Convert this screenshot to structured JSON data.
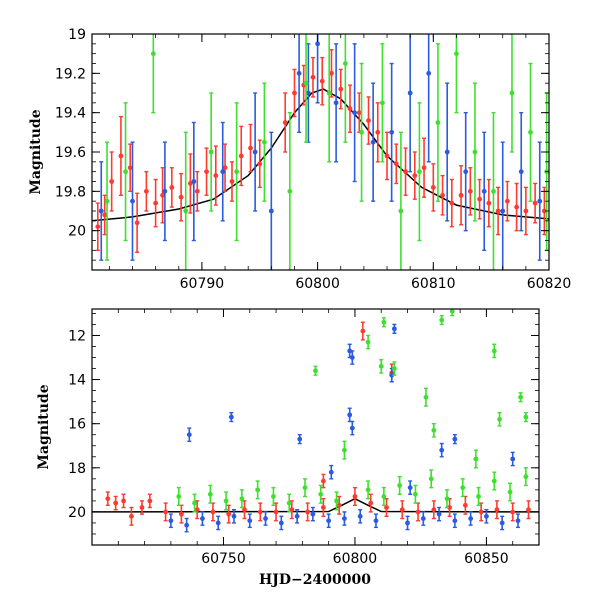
{
  "chart_data": [
    {
      "type": "scatter",
      "panel": "top",
      "title": "",
      "xlabel": "",
      "ylabel": "Magnitude",
      "xlim": [
        60780.5,
        60820
      ],
      "ylim": [
        20.2,
        19.0
      ],
      "y_inverted": true,
      "xticks": [
        60790,
        60800,
        60810,
        60820
      ],
      "yticks": [
        19,
        19.2,
        19.4,
        19.6,
        19.8,
        20
      ],
      "ytick_labels": [
        "19",
        "19.2",
        "19.4",
        "19.6",
        "19.8",
        "20"
      ],
      "grid": false,
      "legend": "none",
      "series": [
        {
          "color": "#ff3b2f",
          "marker": "circle",
          "x": [
            60781.0,
            60781.6,
            60782.2,
            60783.0,
            60783.8,
            60784.4,
            60785.2,
            60786.0,
            60786.6,
            60787.4,
            60788.2,
            60789.0,
            60789.6,
            60790.4,
            60791.2,
            60792.0,
            60792.6,
            60793.4,
            60794.2,
            60795.0,
            60797.2,
            60798.0,
            60798.8,
            60799.6,
            60800.4,
            60801.2,
            60802.0,
            60802.8,
            60803.6,
            60804.4,
            60805.2,
            60806.0,
            60806.8,
            60807.6,
            60808.4,
            60809.2,
            60810.0,
            60810.8,
            60811.6,
            60812.4,
            60813.2,
            60814.0,
            60814.8,
            60815.6,
            60816.4,
            60817.2,
            60818.0,
            60818.8,
            60819.6
          ],
          "y": [
            19.98,
            19.92,
            19.75,
            19.62,
            19.68,
            19.96,
            19.8,
            19.86,
            19.82,
            19.78,
            19.83,
            19.76,
            19.8,
            19.7,
            19.72,
            19.68,
            19.75,
            19.62,
            19.58,
            19.66,
            19.45,
            19.3,
            19.26,
            19.22,
            19.24,
            19.2,
            19.28,
            19.38,
            19.4,
            19.44,
            19.5,
            19.62,
            19.66,
            19.7,
            19.72,
            19.68,
            19.78,
            19.82,
            19.86,
            19.82,
            19.8,
            19.84,
            19.86,
            19.9,
            19.85,
            19.88,
            19.9,
            19.86,
            19.9
          ],
          "yerr": [
            0.12,
            0.1,
            0.15,
            0.2,
            0.12,
            0.15,
            0.1,
            0.12,
            0.14,
            0.1,
            0.12,
            0.15,
            0.1,
            0.12,
            0.15,
            0.12,
            0.1,
            0.15,
            0.12,
            0.12,
            0.15,
            0.12,
            0.1,
            0.1,
            0.12,
            0.12,
            0.1,
            0.12,
            0.1,
            0.12,
            0.15,
            0.12,
            0.1,
            0.12,
            0.12,
            0.15,
            0.12,
            0.1,
            0.12,
            0.15,
            0.12,
            0.1,
            0.12,
            0.12,
            0.1,
            0.12,
            0.12,
            0.1,
            0.12
          ]
        },
        {
          "color": "#2a5be0",
          "marker": "circle",
          "x": [
            60781.3,
            60784.0,
            60786.8,
            60789.3,
            60791.8,
            60794.6,
            60796.0,
            60798.4,
            60799.2,
            60800.0,
            60801.6,
            60803.2,
            60804.8,
            60806.4,
            60808.0,
            60809.6,
            60811.2,
            60812.8,
            60814.4,
            60816.0,
            60817.6,
            60819.2
          ],
          "y": [
            19.9,
            19.85,
            19.8,
            19.75,
            19.7,
            19.6,
            19.9,
            19.2,
            19.3,
            19.05,
            19.35,
            19.4,
            19.55,
            19.5,
            19.3,
            19.2,
            19.6,
            19.7,
            19.8,
            19.9,
            19.7,
            19.85
          ],
          "yerr": [
            0.25,
            0.3,
            0.25,
            0.3,
            0.25,
            0.3,
            0.4,
            0.3,
            0.25,
            0.3,
            0.3,
            0.35,
            0.3,
            0.35,
            0.4,
            0.45,
            0.35,
            0.3,
            0.3,
            0.35,
            0.3,
            0.3
          ]
        },
        {
          "color": "#3ee02e",
          "marker": "circle",
          "x": [
            60781.8,
            60783.4,
            60785.8,
            60788.6,
            60790.8,
            60793.0,
            60795.4,
            60797.6,
            60799.0,
            60801.0,
            60802.4,
            60803.8,
            60805.6,
            60807.2,
            60808.8,
            60810.4,
            60812.0,
            60813.6,
            60815.2,
            60816.8,
            60818.4,
            60819.8
          ],
          "y": [
            19.85,
            19.7,
            19.1,
            19.9,
            19.6,
            19.7,
            19.55,
            19.8,
            19.25,
            19.3,
            19.15,
            19.5,
            19.35,
            19.9,
            19.7,
            19.45,
            19.1,
            19.6,
            19.8,
            19.3,
            19.5,
            19.7
          ],
          "yerr": [
            0.3,
            0.35,
            0.3,
            0.4,
            0.3,
            0.35,
            0.3,
            0.4,
            0.3,
            0.35,
            0.4,
            0.35,
            0.3,
            0.4,
            0.35,
            0.4,
            0.3,
            0.35,
            0.4,
            0.3,
            0.35,
            0.4
          ]
        }
      ],
      "model_curve": {
        "color": "#000000",
        "x": [
          60780.5,
          60784,
          60788,
          60791,
          60794,
          60796,
          60798,
          60799.5,
          60800.5,
          60802,
          60804,
          60806,
          60809,
          60812,
          60816,
          60820
        ],
        "y": [
          19.95,
          19.93,
          19.89,
          19.84,
          19.72,
          19.58,
          19.4,
          19.3,
          19.28,
          19.33,
          19.46,
          19.62,
          19.78,
          19.87,
          19.92,
          19.94
        ]
      }
    },
    {
      "type": "scatter",
      "panel": "bottom",
      "title": "",
      "xlabel": "HJD−2400000",
      "ylabel": "Magnitude",
      "xlim": [
        60700,
        60870
      ],
      "ylim": [
        21.5,
        10.8
      ],
      "y_inverted": true,
      "xticks": [
        60750,
        60800,
        60850
      ],
      "yticks": [
        12,
        14,
        16,
        18,
        20
      ],
      "ytick_labels": [
        "12",
        "14",
        "16",
        "18",
        "20"
      ],
      "grid": false,
      "legend": "none",
      "series": [
        {
          "color": "#ff3b2f",
          "marker": "circle",
          "x": [
            60706,
            60709,
            60712,
            60715,
            60719,
            60722,
            60728,
            60734,
            60740,
            60746,
            60752,
            60758,
            60764,
            60770,
            60776,
            60782,
            60788,
            60794,
            60800,
            60806,
            60812,
            60818,
            60824,
            60830,
            60836,
            60842,
            60848,
            60854,
            60860,
            60866,
            60803,
            60814,
            60788
          ],
          "y": [
            19.4,
            19.6,
            19.5,
            20.2,
            19.8,
            19.5,
            20.0,
            20.1,
            19.9,
            20.0,
            20.1,
            19.9,
            20.0,
            20.0,
            19.9,
            20.0,
            19.8,
            19.7,
            19.3,
            19.6,
            19.8,
            19.9,
            20.0,
            19.9,
            19.8,
            19.7,
            20.0,
            19.9,
            20.0,
            19.9,
            11.8,
            13.7,
            18.6
          ],
          "yerr": [
            0.3,
            0.3,
            0.3,
            0.4,
            0.3,
            0.3,
            0.4,
            0.4,
            0.4,
            0.4,
            0.4,
            0.4,
            0.4,
            0.4,
            0.4,
            0.4,
            0.4,
            0.4,
            0.4,
            0.4,
            0.4,
            0.4,
            0.4,
            0.4,
            0.4,
            0.4,
            0.4,
            0.4,
            0.4,
            0.4,
            0.4,
            0.4,
            0.3
          ]
        },
        {
          "color": "#2a5be0",
          "marker": "circle",
          "x": [
            60730,
            60736,
            60742,
            60748,
            60754,
            60760,
            60766,
            60772,
            60778,
            60784,
            60790,
            60796,
            60802,
            60808,
            60820,
            60826,
            60832,
            60838,
            60844,
            60850,
            60856,
            60862,
            60737,
            60753,
            60779,
            60798,
            60799,
            60798,
            60799,
            60815,
            60814,
            60838,
            60833,
            60860,
            60791,
            60821
          ],
          "y": [
            20.4,
            20.6,
            20.3,
            20.5,
            20.2,
            20.4,
            20.3,
            20.5,
            20.2,
            20.1,
            20.4,
            20.3,
            20.2,
            20.4,
            20.5,
            20.3,
            20.1,
            20.4,
            20.3,
            20.2,
            20.5,
            20.4,
            16.5,
            15.7,
            16.7,
            12.7,
            13.0,
            15.6,
            16.2,
            11.7,
            13.8,
            16.7,
            17.2,
            17.6,
            18.2,
            18.9
          ],
          "yerr": [
            0.3,
            0.3,
            0.3,
            0.3,
            0.3,
            0.3,
            0.3,
            0.3,
            0.3,
            0.3,
            0.3,
            0.3,
            0.3,
            0.3,
            0.3,
            0.3,
            0.3,
            0.3,
            0.3,
            0.3,
            0.3,
            0.3,
            0.3,
            0.2,
            0.2,
            0.3,
            0.3,
            0.3,
            0.3,
            0.2,
            0.3,
            0.2,
            0.3,
            0.3,
            0.3,
            0.3
          ]
        },
        {
          "color": "#3ee02e",
          "marker": "circle",
          "x": [
            60733,
            60739,
            60745,
            60751,
            60757,
            60763,
            60769,
            60775,
            60781,
            60787,
            60793,
            60805,
            60811,
            60817,
            60823,
            60829,
            60835,
            60841,
            60847,
            60853,
            60859,
            60865,
            60785,
            60805,
            60810,
            60811,
            60815,
            60827,
            60830,
            60833,
            60837,
            60853,
            60855,
            60863,
            60865,
            60796,
            60846
          ],
          "y": [
            19.3,
            19.6,
            19.2,
            19.5,
            19.4,
            19.0,
            19.3,
            19.6,
            18.9,
            19.2,
            19.5,
            19.0,
            19.3,
            18.8,
            19.2,
            18.5,
            19.4,
            18.9,
            19.3,
            18.6,
            19.1,
            18.4,
            13.6,
            12.3,
            13.4,
            11.4,
            13.5,
            14.8,
            16.3,
            11.3,
            10.9,
            12.7,
            15.8,
            14.8,
            15.7,
            17.2,
            17.6
          ],
          "yerr": [
            0.4,
            0.4,
            0.4,
            0.4,
            0.4,
            0.4,
            0.4,
            0.4,
            0.4,
            0.4,
            0.4,
            0.4,
            0.4,
            0.4,
            0.4,
            0.4,
            0.4,
            0.4,
            0.4,
            0.4,
            0.4,
            0.4,
            0.2,
            0.3,
            0.3,
            0.2,
            0.3,
            0.4,
            0.3,
            0.2,
            0.2,
            0.3,
            0.3,
            0.2,
            0.2,
            0.4,
            0.4
          ]
        }
      ],
      "model_curve": {
        "color": "#000000",
        "x": [
          60700,
          60790,
          60795,
          60800,
          60805,
          60810,
          60870
        ],
        "y": [
          20.0,
          19.98,
          19.7,
          19.4,
          19.7,
          19.98,
          20.0
        ]
      }
    }
  ]
}
